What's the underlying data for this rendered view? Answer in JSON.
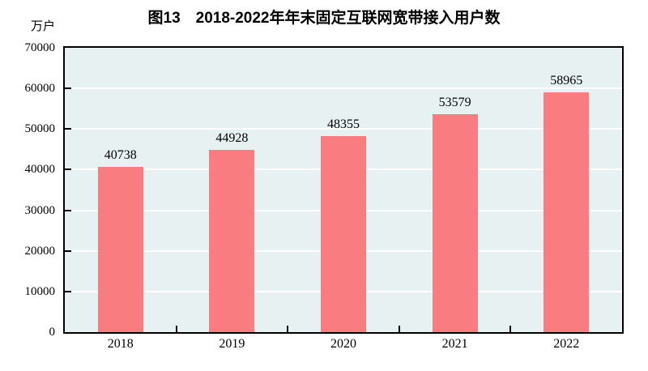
{
  "page": {
    "background": "#ffffff"
  },
  "chart_data": {
    "type": "bar",
    "title": "图13　2018-2022年年末固定互联网宽带接入用户数",
    "unit_label": "万户",
    "categories": [
      "2018",
      "2019",
      "2020",
      "2021",
      "2022"
    ],
    "values": [
      40738,
      44928,
      48355,
      53579,
      58965
    ],
    "data_labels": [
      "40738",
      "44928",
      "48355",
      "53579",
      "58965"
    ],
    "xlabel": "",
    "ylabel": "万户",
    "ylim": [
      0,
      70000
    ],
    "yticks": [
      0,
      10000,
      20000,
      30000,
      40000,
      50000,
      60000,
      70000
    ],
    "grid": true,
    "legend": "none",
    "colors": {
      "bar": "#f97c80",
      "plot_bg": "#e8f1f2",
      "gridline": "#ffffff",
      "axis": "#000000",
      "text": "#000000"
    }
  }
}
